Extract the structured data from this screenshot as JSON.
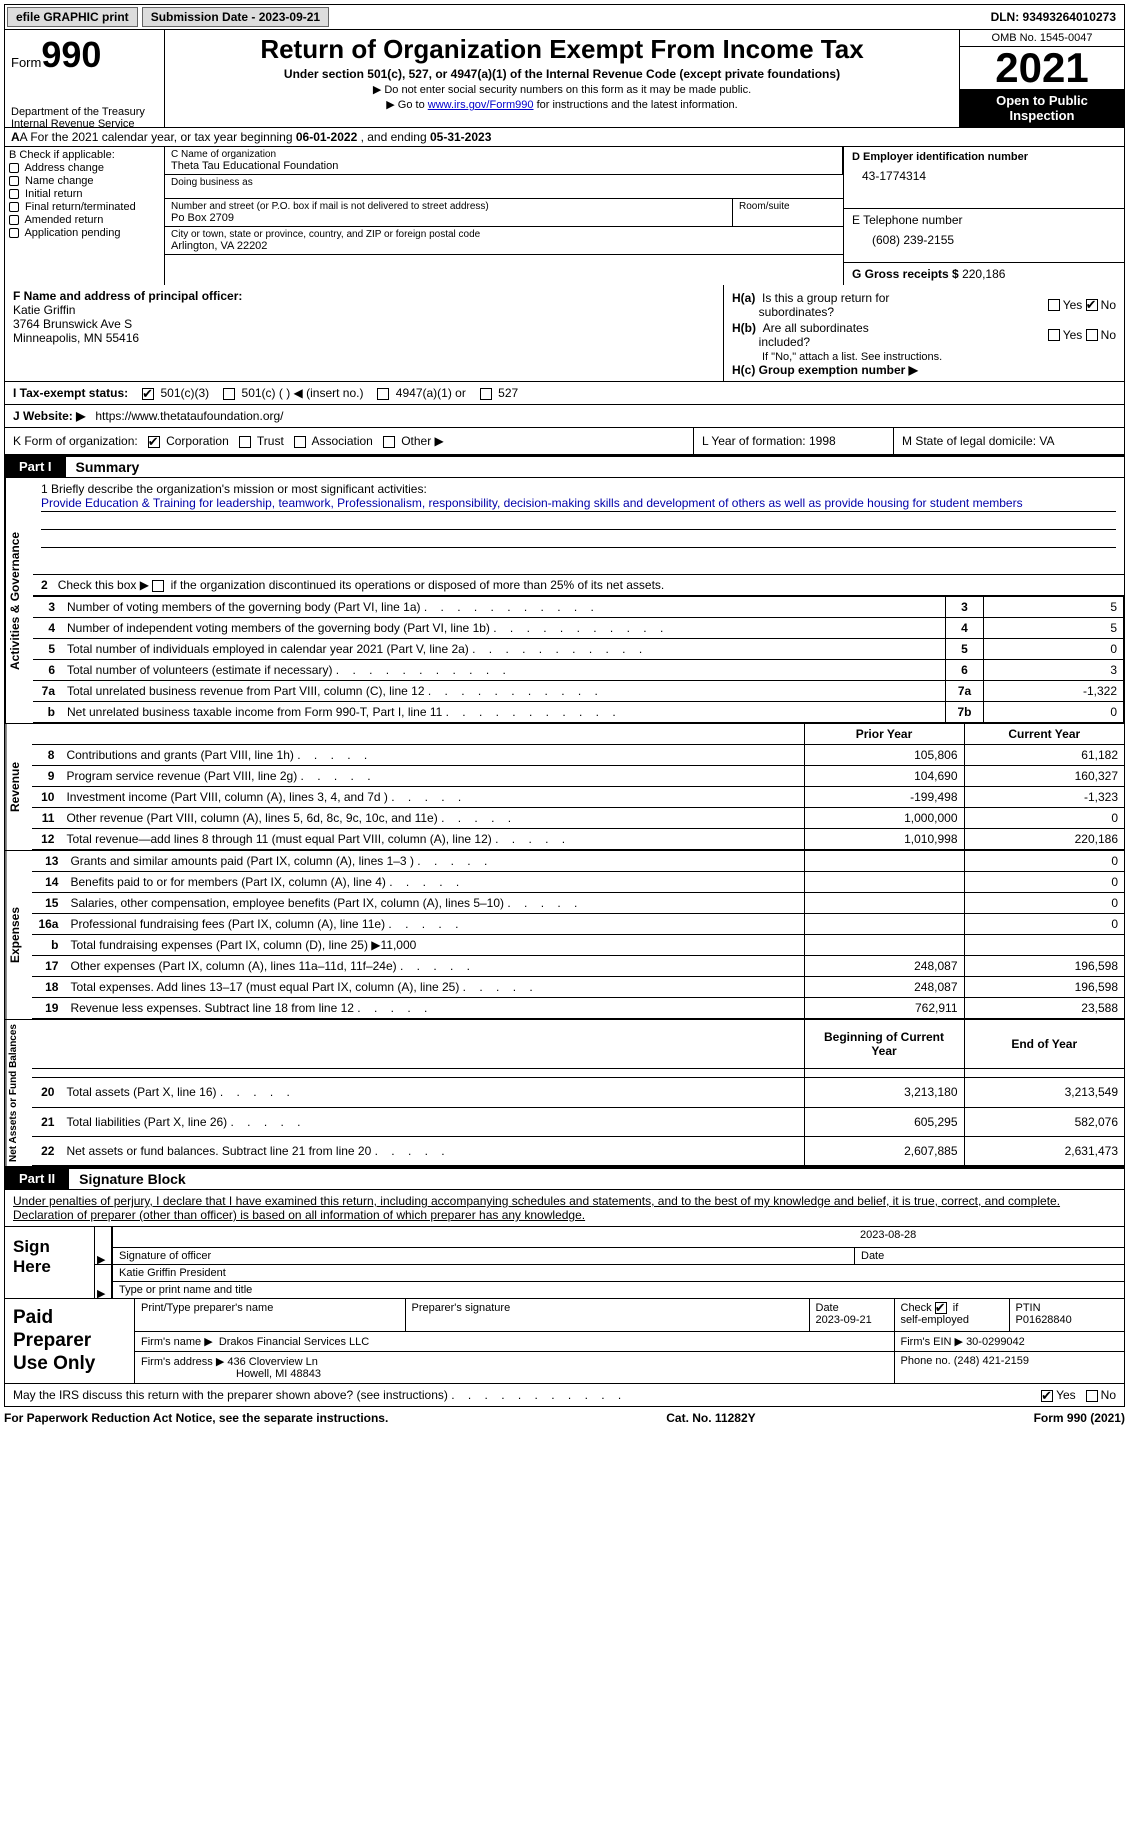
{
  "topbar": {
    "efile": "efile GRAPHIC print",
    "submission_label": "Submission Date - 2023-09-21",
    "dln_label": "DLN: 93493264010273"
  },
  "header": {
    "form_word": "Form",
    "form_num": "990",
    "dept": "Department of the Treasury",
    "irs": "Internal Revenue Service",
    "title": "Return of Organization Exempt From Income Tax",
    "sub1": "Under section 501(c), 527, or 4947(a)(1) of the Internal Revenue Code (except private foundations)",
    "sub2": "▶ Do not enter social security numbers on this form as it may be made public.",
    "sub3_pre": "▶ Go to ",
    "sub3_link": "www.irs.gov/Form990",
    "sub3_post": " for instructions and the latest information.",
    "omb": "OMB No. 1545-0047",
    "year": "2021",
    "inspect": "Open to Public Inspection"
  },
  "row_a": {
    "pre": "A For the 2021 calendar year, or tax year beginning ",
    "begin": "06-01-2022",
    "mid": "  , and ending ",
    "end": "05-31-2023"
  },
  "col_b": {
    "hdr": "B Check if applicable:",
    "opts": [
      "Address change",
      "Name change",
      "Initial return",
      "Final return/terminated",
      "Amended return",
      "Application pending"
    ]
  },
  "col_c": {
    "name_lbl": "C Name of organization",
    "name": "Theta Tau Educational Foundation",
    "dba_lbl": "Doing business as",
    "addr_lbl": "Number and street (or P.O. box if mail is not delivered to street address)",
    "addr": "Po Box 2709",
    "room_lbl": "Room/suite",
    "city_lbl": "City or town, state or province, country, and ZIP or foreign postal code",
    "city": "Arlington, VA  22202"
  },
  "col_d": {
    "ein_lbl": "D Employer identification number",
    "ein": "43-1774314",
    "tel_lbl": "E Telephone number",
    "tel": "(608) 239-2155",
    "gross_lbl": "G Gross receipts $",
    "gross": "220,186"
  },
  "f": {
    "lbl": "F  Name and address of principal officer:",
    "name": "Katie Griffin",
    "addr1": "3764 Brunswick Ave S",
    "addr2": "Minneapolis, MN  55416"
  },
  "h": {
    "a_lbl": "H(a)  Is this a group return for",
    "a_lbl2": "subordinates?",
    "b_lbl": "H(b)  Are all subordinates included?",
    "b_note": "If \"No,\" attach a list. See instructions.",
    "c_lbl": "H(c)  Group exemption number ▶",
    "yes": "Yes",
    "no": "No"
  },
  "row_i": {
    "lbl": "I  Tax-exempt status:",
    "o1": "501(c)(3)",
    "o2": "501(c) (  ) ◀ (insert no.)",
    "o3": "4947(a)(1) or",
    "o4": "527"
  },
  "row_j": {
    "lbl": "J  Website: ▶",
    "url": "https://www.thetataufoundation.org/"
  },
  "row_k": {
    "lbl": "K Form of organization:",
    "o1": "Corporation",
    "o2": "Trust",
    "o3": "Association",
    "o4": "Other ▶"
  },
  "row_l": {
    "lbl": "L Year of formation:",
    "val": "1998"
  },
  "row_m": {
    "lbl": "M State of legal domicile:",
    "val": "VA"
  },
  "parts": {
    "p1_num": "Part I",
    "p1_title": "Summary",
    "p2_num": "Part II",
    "p2_title": "Signature Block"
  },
  "vtabs": {
    "act": "Activities & Governance",
    "rev": "Revenue",
    "exp": "Expenses",
    "net": "Net Assets or Fund Balances"
  },
  "mission": {
    "lbl": "1   Briefly describe the organization's mission or most significant activities:",
    "text": "Provide Education & Training for leadership, teamwork, Professionalism, responsibility, decision-making skills and development of others as well as provide housing for student members"
  },
  "line2_txt": "2    Check this box ▶       if the organization discontinued its operations or disposed of more than 25% of its net assets.",
  "act_lines": [
    {
      "n": "3",
      "d": "Number of voting members of the governing body (Part VI, line 1a)",
      "b": "3",
      "v": "5"
    },
    {
      "n": "4",
      "d": "Number of independent voting members of the governing body (Part VI, line 1b)",
      "b": "4",
      "v": "5"
    },
    {
      "n": "5",
      "d": "Total number of individuals employed in calendar year 2021 (Part V, line 2a)",
      "b": "5",
      "v": "0"
    },
    {
      "n": "6",
      "d": "Total number of volunteers (estimate if necessary)",
      "b": "6",
      "v": "3"
    },
    {
      "n": "7a",
      "d": "Total unrelated business revenue from Part VIII, column (C), line 12",
      "b": "7a",
      "v": "-1,322"
    },
    {
      "n": "b",
      "d": "Net unrelated business taxable income from Form 990-T, Part I, line 11",
      "b": "7b",
      "v": "0"
    }
  ],
  "fin_hdr": {
    "prior": "Prior Year",
    "curr": "Current Year",
    "boy": "Beginning of Current Year",
    "eoy": "End of Year"
  },
  "rev_lines": [
    {
      "n": "8",
      "d": "Contributions and grants (Part VIII, line 1h)",
      "p": "105,806",
      "c": "61,182"
    },
    {
      "n": "9",
      "d": "Program service revenue (Part VIII, line 2g)",
      "p": "104,690",
      "c": "160,327"
    },
    {
      "n": "10",
      "d": "Investment income (Part VIII, column (A), lines 3, 4, and 7d )",
      "p": "-199,498",
      "c": "-1,323"
    },
    {
      "n": "11",
      "d": "Other revenue (Part VIII, column (A), lines 5, 6d, 8c, 9c, 10c, and 11e)",
      "p": "1,000,000",
      "c": "0"
    },
    {
      "n": "12",
      "d": "Total revenue—add lines 8 through 11 (must equal Part VIII, column (A), line 12)",
      "p": "1,010,998",
      "c": "220,186"
    }
  ],
  "exp_lines": [
    {
      "n": "13",
      "d": "Grants and similar amounts paid (Part IX, column (A), lines 1–3 )",
      "p": "",
      "c": "0"
    },
    {
      "n": "14",
      "d": "Benefits paid to or for members (Part IX, column (A), line 4)",
      "p": "",
      "c": "0"
    },
    {
      "n": "15",
      "d": "Salaries, other compensation, employee benefits (Part IX, column (A), lines 5–10)",
      "p": "",
      "c": "0"
    },
    {
      "n": "16a",
      "d": "Professional fundraising fees (Part IX, column (A), line 11e)",
      "p": "",
      "c": "0"
    },
    {
      "n": "b",
      "d": "Total fundraising expenses (Part IX, column (D), line 25) ▶11,000",
      "p": "SHADE",
      "c": "SHADE"
    },
    {
      "n": "17",
      "d": "Other expenses (Part IX, column (A), lines 11a–11d, 11f–24e)",
      "p": "248,087",
      "c": "196,598"
    },
    {
      "n": "18",
      "d": "Total expenses. Add lines 13–17 (must equal Part IX, column (A), line 25)",
      "p": "248,087",
      "c": "196,598"
    },
    {
      "n": "19",
      "d": "Revenue less expenses. Subtract line 18 from line 12",
      "p": "762,911",
      "c": "23,588"
    }
  ],
  "net_lines": [
    {
      "n": "20",
      "d": "Total assets (Part X, line 16)",
      "p": "3,213,180",
      "c": "3,213,549"
    },
    {
      "n": "21",
      "d": "Total liabilities (Part X, line 26)",
      "p": "605,295",
      "c": "582,076"
    },
    {
      "n": "22",
      "d": "Net assets or fund balances. Subtract line 21 from line 20",
      "p": "2,607,885",
      "c": "2,631,473"
    }
  ],
  "sig": {
    "decl": "Under penalties of perjury, I declare that I have examined this return, including accompanying schedules and statements, and to the best of my knowledge and belief, it is true, correct, and complete. Declaration of preparer (other than officer) is based on all information of which preparer has any knowledge.",
    "sign_here": "Sign Here",
    "sig_officer": "Signature of officer",
    "date": "Date",
    "date_val": "2023-08-28",
    "name_title": "Katie Griffin  President",
    "type_lbl": "Type or print name and title"
  },
  "prep": {
    "title": "Paid Preparer Use Only",
    "name_lbl": "Print/Type preparer's name",
    "sig_lbl": "Preparer's signature",
    "date_lbl": "Date",
    "date_val": "2023-09-21",
    "check_lbl": "Check         if self-employed",
    "ptin_lbl": "PTIN",
    "ptin": "P01628840",
    "firm_name_lbl": "Firm's name    ▶",
    "firm_name": "Drakos Financial Services LLC",
    "firm_ein_lbl": "Firm's EIN ▶",
    "firm_ein": "30-0299042",
    "firm_addr_lbl": "Firm's address ▶",
    "firm_addr1": "436 Cloverview Ln",
    "firm_addr2": "Howell, MI  48843",
    "phone_lbl": "Phone no.",
    "phone": "(248) 421-2159"
  },
  "discuss": {
    "txt": "May the IRS discuss this return with the preparer shown above? (see instructions)",
    "yes": "Yes",
    "no": "No"
  },
  "footer": {
    "left": "For Paperwork Reduction Act Notice, see the separate instructions.",
    "mid": "Cat. No. 11282Y",
    "right": "Form 990 (2021)"
  }
}
